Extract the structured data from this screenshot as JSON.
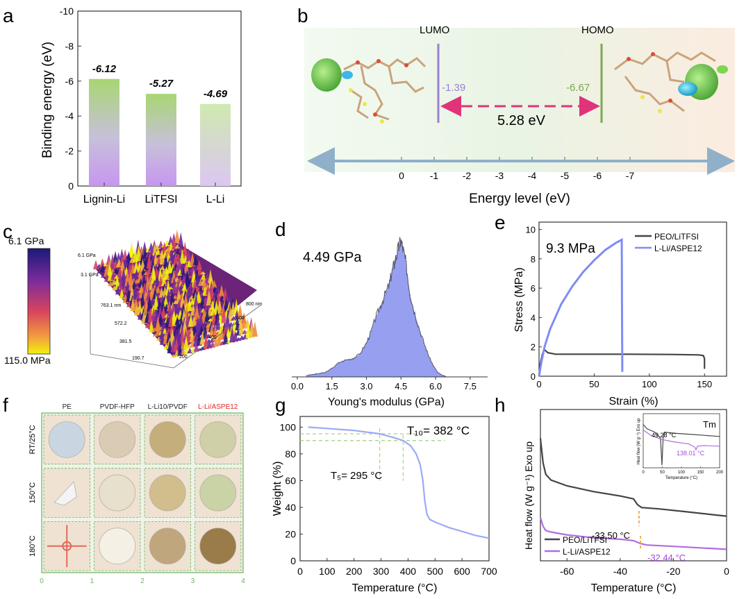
{
  "figure": {
    "panel_letters": [
      "a",
      "b",
      "c",
      "d",
      "e",
      "f",
      "g",
      "h"
    ]
  },
  "chart_data": [
    {
      "panel": "a",
      "type": "bar",
      "title": "",
      "ylabel": "Binding energy (eV)",
      "xlabel": "",
      "categories": [
        "Lignin-Li",
        "LiTFSI",
        "L-Li"
      ],
      "values": [
        -6.12,
        -5.27,
        -4.69
      ],
      "value_labels": [
        "-6.12",
        "-5.27",
        "-4.69"
      ],
      "ylim": [
        0,
        -10
      ],
      "yticks": [
        0,
        -2,
        -4,
        -6,
        -8,
        -10
      ],
      "ytick_labels": [
        "0",
        "-2",
        "-4",
        "-6",
        "-8",
        "-10"
      ],
      "colors": [
        "#a5d46e",
        "#b9dc8a",
        "#d2ebb5"
      ],
      "base_color": "#c99df2"
    },
    {
      "panel": "b",
      "type": "diagram",
      "xlabel": "Energy level (eV)",
      "lumo_label": "LUMO",
      "homo_label": "HOMO",
      "lumo_value": "-1.39",
      "homo_value": "-6.67",
      "gap_label": "5.28 eV",
      "axis_ticks": [
        0,
        -1,
        -2,
        -3,
        -4,
        -5,
        -6,
        -7
      ],
      "axis_tick_labels": [
        "0",
        "-1",
        "-2",
        "-3",
        "-4",
        "-5",
        "-6",
        "-7"
      ],
      "lumo_color": "#9b7fd4",
      "homo_color": "#7aa84f",
      "gap_color": "#e0337a"
    },
    {
      "panel": "c",
      "type": "surface-3d",
      "colorbar_max": "6.1 GPa",
      "colorbar_min": "115.0 MPa",
      "z_tick_labels": [
        "6.1 GPa",
        "3.1 GPa"
      ],
      "y_tick_labels": [
        "763.1 nm",
        "572.2",
        "381.5",
        "190.7"
      ],
      "x_tick_labels": [
        "200",
        "400",
        "600",
        "800 nm"
      ]
    },
    {
      "panel": "d",
      "type": "histogram",
      "xlabel": "Young's modulus (GPa)",
      "annotation": "4.49 GPa",
      "xlim": [
        0,
        8.2
      ],
      "xticks": [
        0,
        1.5,
        3,
        4.5,
        6,
        7.5
      ],
      "xtick_labels": [
        "0.0",
        "1.5",
        "3.0",
        "4.5",
        "6.0",
        "7.5"
      ],
      "x": [
        0.4,
        0.8,
        1.2,
        1.5,
        1.8,
        2.1,
        2.4,
        2.7,
        3.0,
        3.2,
        3.4,
        3.6,
        3.8,
        4.0,
        4.1,
        4.2,
        4.3,
        4.4,
        4.5,
        4.6,
        4.7,
        4.8,
        4.9,
        5.1,
        5.3,
        5.5,
        5.7,
        5.9,
        6.1,
        6.3,
        6.5
      ],
      "y": [
        0.01,
        0.02,
        0.03,
        0.06,
        0.1,
        0.12,
        0.13,
        0.16,
        0.24,
        0.32,
        0.42,
        0.5,
        0.58,
        0.66,
        0.74,
        0.8,
        0.86,
        0.92,
        0.97,
        0.9,
        0.82,
        0.7,
        0.58,
        0.45,
        0.34,
        0.24,
        0.15,
        0.08,
        0.03,
        0.01,
        0.0
      ],
      "fill_color": "#8c96ee",
      "line_color": "#555566"
    },
    {
      "panel": "e",
      "type": "line",
      "xlabel": "Strain (%)",
      "ylabel": "Stress (MPa)",
      "annotation": "9.3 MPa",
      "xlim": [
        0,
        170
      ],
      "ylim": [
        0,
        10.5
      ],
      "xticks": [
        0,
        50,
        100,
        150
      ],
      "xtick_labels": [
        "0",
        "50",
        "100",
        "150"
      ],
      "yticks": [
        0,
        2,
        4,
        6,
        8,
        10
      ],
      "ytick_labels": [
        "0",
        "2",
        "4",
        "6",
        "8",
        "10"
      ],
      "series": [
        {
          "name": "PEO/LiTFSI",
          "color": "#444444",
          "x": [
            0,
            1,
            3,
            5,
            8,
            15,
            40,
            80,
            120,
            145,
            149,
            150,
            150
          ],
          "y": [
            0,
            0.8,
            1.5,
            1.8,
            1.6,
            1.5,
            1.5,
            1.5,
            1.48,
            1.45,
            1.4,
            1.2,
            0.5
          ]
        },
        {
          "name": "L-Li/ASPE12",
          "color": "#7e8cf2",
          "x": [
            0,
            2,
            5,
            10,
            20,
            30,
            40,
            50,
            60,
            70,
            75,
            75.2,
            75.5
          ],
          "y": [
            0,
            0.9,
            2.0,
            3.2,
            4.9,
            6.1,
            7.1,
            7.9,
            8.6,
            9.1,
            9.3,
            5.0,
            0.3
          ]
        }
      ]
    },
    {
      "panel": "f",
      "type": "table",
      "column_headers": [
        "PE",
        "PVDF-HFP",
        "L-Li10/PVDF",
        "L-Li/ASPE12"
      ],
      "header_highlight_color": "#e02828",
      "row_headers": [
        "RT/25°C",
        "150°C",
        "180°C"
      ],
      "axis_ticks": [
        "0",
        "1",
        "2",
        "3",
        "4"
      ],
      "cells": [
        [
          "#c9d6e2",
          "#d9cbb4",
          "#c3ae7c",
          "#cfcfa8"
        ],
        [
          "#e8e4dc",
          "#e6e0cc",
          "#d2bd8c",
          "#c9d3a5"
        ],
        [
          "#e6d2c4",
          "#f4f0e6",
          "#c0a67c",
          "#9a7c4a"
        ]
      ]
    },
    {
      "panel": "g",
      "type": "line",
      "xlabel": "Temperature (°C)",
      "ylabel": "Weight (%)",
      "t10_label": "T₁₀= 382 °C",
      "t5_label": "T₅= 295 °C",
      "xlim": [
        0,
        700
      ],
      "ylim": [
        0,
        108
      ],
      "xticks": [
        0,
        100,
        200,
        300,
        400,
        500,
        600,
        700
      ],
      "xtick_labels": [
        "0",
        "100",
        "200",
        "300",
        "400",
        "500",
        "600",
        "700"
      ],
      "yticks": [
        0,
        20,
        40,
        60,
        80,
        100
      ],
      "ytick_labels": [
        "0",
        "20",
        "40",
        "60",
        "80",
        "100"
      ],
      "series": [
        {
          "name": "L-Li/ASPE12",
          "color": "#9aaaf4",
          "x": [
            30,
            100,
            200,
            295,
            350,
            382,
            410,
            430,
            445,
            455,
            462,
            470,
            480,
            500,
            550,
            600,
            650,
            700
          ],
          "y": [
            100,
            99,
            97.5,
            95,
            92,
            90,
            86,
            80,
            72,
            60,
            45,
            35,
            31,
            29,
            25,
            22,
            19,
            17
          ]
        }
      ],
      "guide_color": "#a8d48a"
    },
    {
      "panel": "h",
      "type": "line",
      "xlabel": "Temperature (°C)",
      "ylabel": "Heat flow (W g⁻¹) Exo up",
      "xlim": [
        -70,
        0
      ],
      "xticks": [
        -60,
        -40,
        -20,
        0
      ],
      "xtick_labels": [
        "-60",
        "-40",
        "-20",
        "0"
      ],
      "annotation_peo": "-33.50 °C",
      "annotation_lli": "-32.44 °C",
      "series": [
        {
          "name": "PEO/LiTFSI",
          "color": "#444444",
          "x": [
            -70,
            -69,
            -68,
            -66,
            -60,
            -50,
            -40,
            -35,
            -33.5,
            -32,
            -25,
            -15,
            -5,
            0
          ],
          "y": [
            0.95,
            0.78,
            0.7,
            0.66,
            0.62,
            0.58,
            0.55,
            0.53,
            0.49,
            0.47,
            0.46,
            0.44,
            0.42,
            0.41
          ]
        },
        {
          "name": "L-Li/ASPE12",
          "color": "#b36be0",
          "x": [
            -70,
            -69,
            -68,
            -66,
            -60,
            -50,
            -40,
            -35,
            -32.4,
            -30,
            -20,
            -10,
            0
          ],
          "y": [
            0.4,
            0.34,
            0.31,
            0.3,
            0.28,
            0.26,
            0.25,
            0.24,
            0.22,
            0.21,
            0.2,
            0.19,
            0.18
          ]
        }
      ],
      "inset": {
        "title": "Tm",
        "xlabel": "Temperature (°C)",
        "ylabel": "Heat flow (W g⁻¹) Exo up",
        "xticks": [
          0,
          50,
          100,
          150,
          200
        ],
        "xtick_labels": [
          "0",
          "50",
          "100",
          "150",
          "200"
        ],
        "annotation_peo": "49.28 °C",
        "annotation_lli": "138.01 °C",
        "series": [
          {
            "name": "PEO/LiTFSI",
            "color": "#444444",
            "x": [
              0,
              10,
              30,
              45,
              49,
              52,
              55,
              80,
              120,
              160,
              200
            ],
            "y": [
              0.8,
              0.72,
              0.66,
              0.55,
              0.05,
              0.55,
              0.66,
              0.64,
              0.62,
              0.6,
              0.58
            ]
          },
          {
            "name": "L-Li/ASPE12",
            "color": "#b36be0",
            "x": [
              0,
              20,
              50,
              80,
              120,
              135,
              138,
              142,
              160,
              200
            ],
            "y": [
              0.7,
              0.6,
              0.52,
              0.48,
              0.44,
              0.38,
              0.33,
              0.4,
              0.41,
              0.4
            ]
          }
        ]
      }
    }
  ]
}
